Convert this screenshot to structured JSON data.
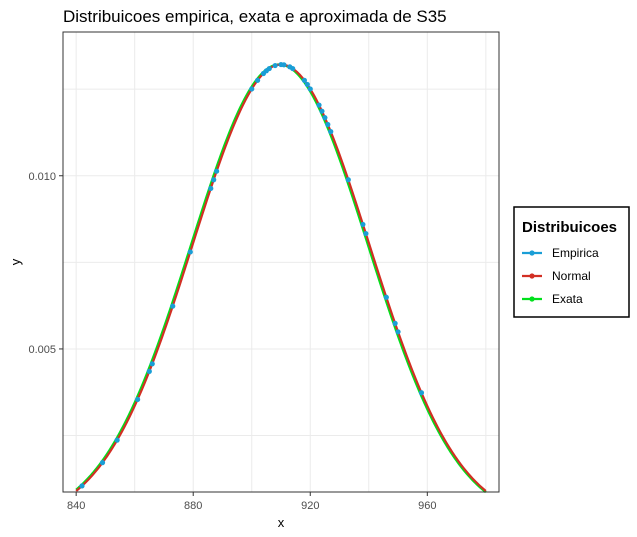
{
  "chart_data": {
    "type": "line",
    "title": "Distribuicoes empirica, exata e aproximada de S35",
    "xlabel": "x",
    "ylabel": "y",
    "xlim": [
      835.5,
      984.5
    ],
    "ylim": [
      0.00087,
      0.01415
    ],
    "x_ticks": [
      840,
      880,
      920,
      960
    ],
    "x_tick_labels": [
      "840",
      "880",
      "920",
      "960"
    ],
    "y_ticks": [
      0.005,
      0.01
    ],
    "y_tick_labels": [
      "0.005",
      "0.010"
    ],
    "grid": true,
    "legend": {
      "title": "Distribuicoes",
      "placement": "right",
      "entries": [
        "Empirica",
        "Normal",
        "Exata"
      ]
    },
    "normal_params": {
      "mean": 910,
      "sd": 30.2
    },
    "x_range": [
      840,
      980
    ],
    "series": [
      {
        "name": "Empirica",
        "color": "#1a9ed6",
        "x": [
          842,
          849,
          854,
          861,
          865,
          866,
          873,
          879,
          886,
          887,
          888,
          900,
          902,
          904,
          905,
          906,
          908,
          910,
          911,
          913,
          914,
          918,
          919,
          920,
          923,
          924,
          925,
          926,
          927,
          933,
          938,
          939,
          946,
          949,
          950,
          958
        ]
      },
      {
        "name": "Normal",
        "color": "#d22f24"
      },
      {
        "name": "Exata",
        "color": "#00e01c"
      }
    ],
    "colors": {
      "grid": "#ebebeb",
      "panel_border": "#333333",
      "tick": "#333333",
      "legend_border": "#000000"
    }
  }
}
